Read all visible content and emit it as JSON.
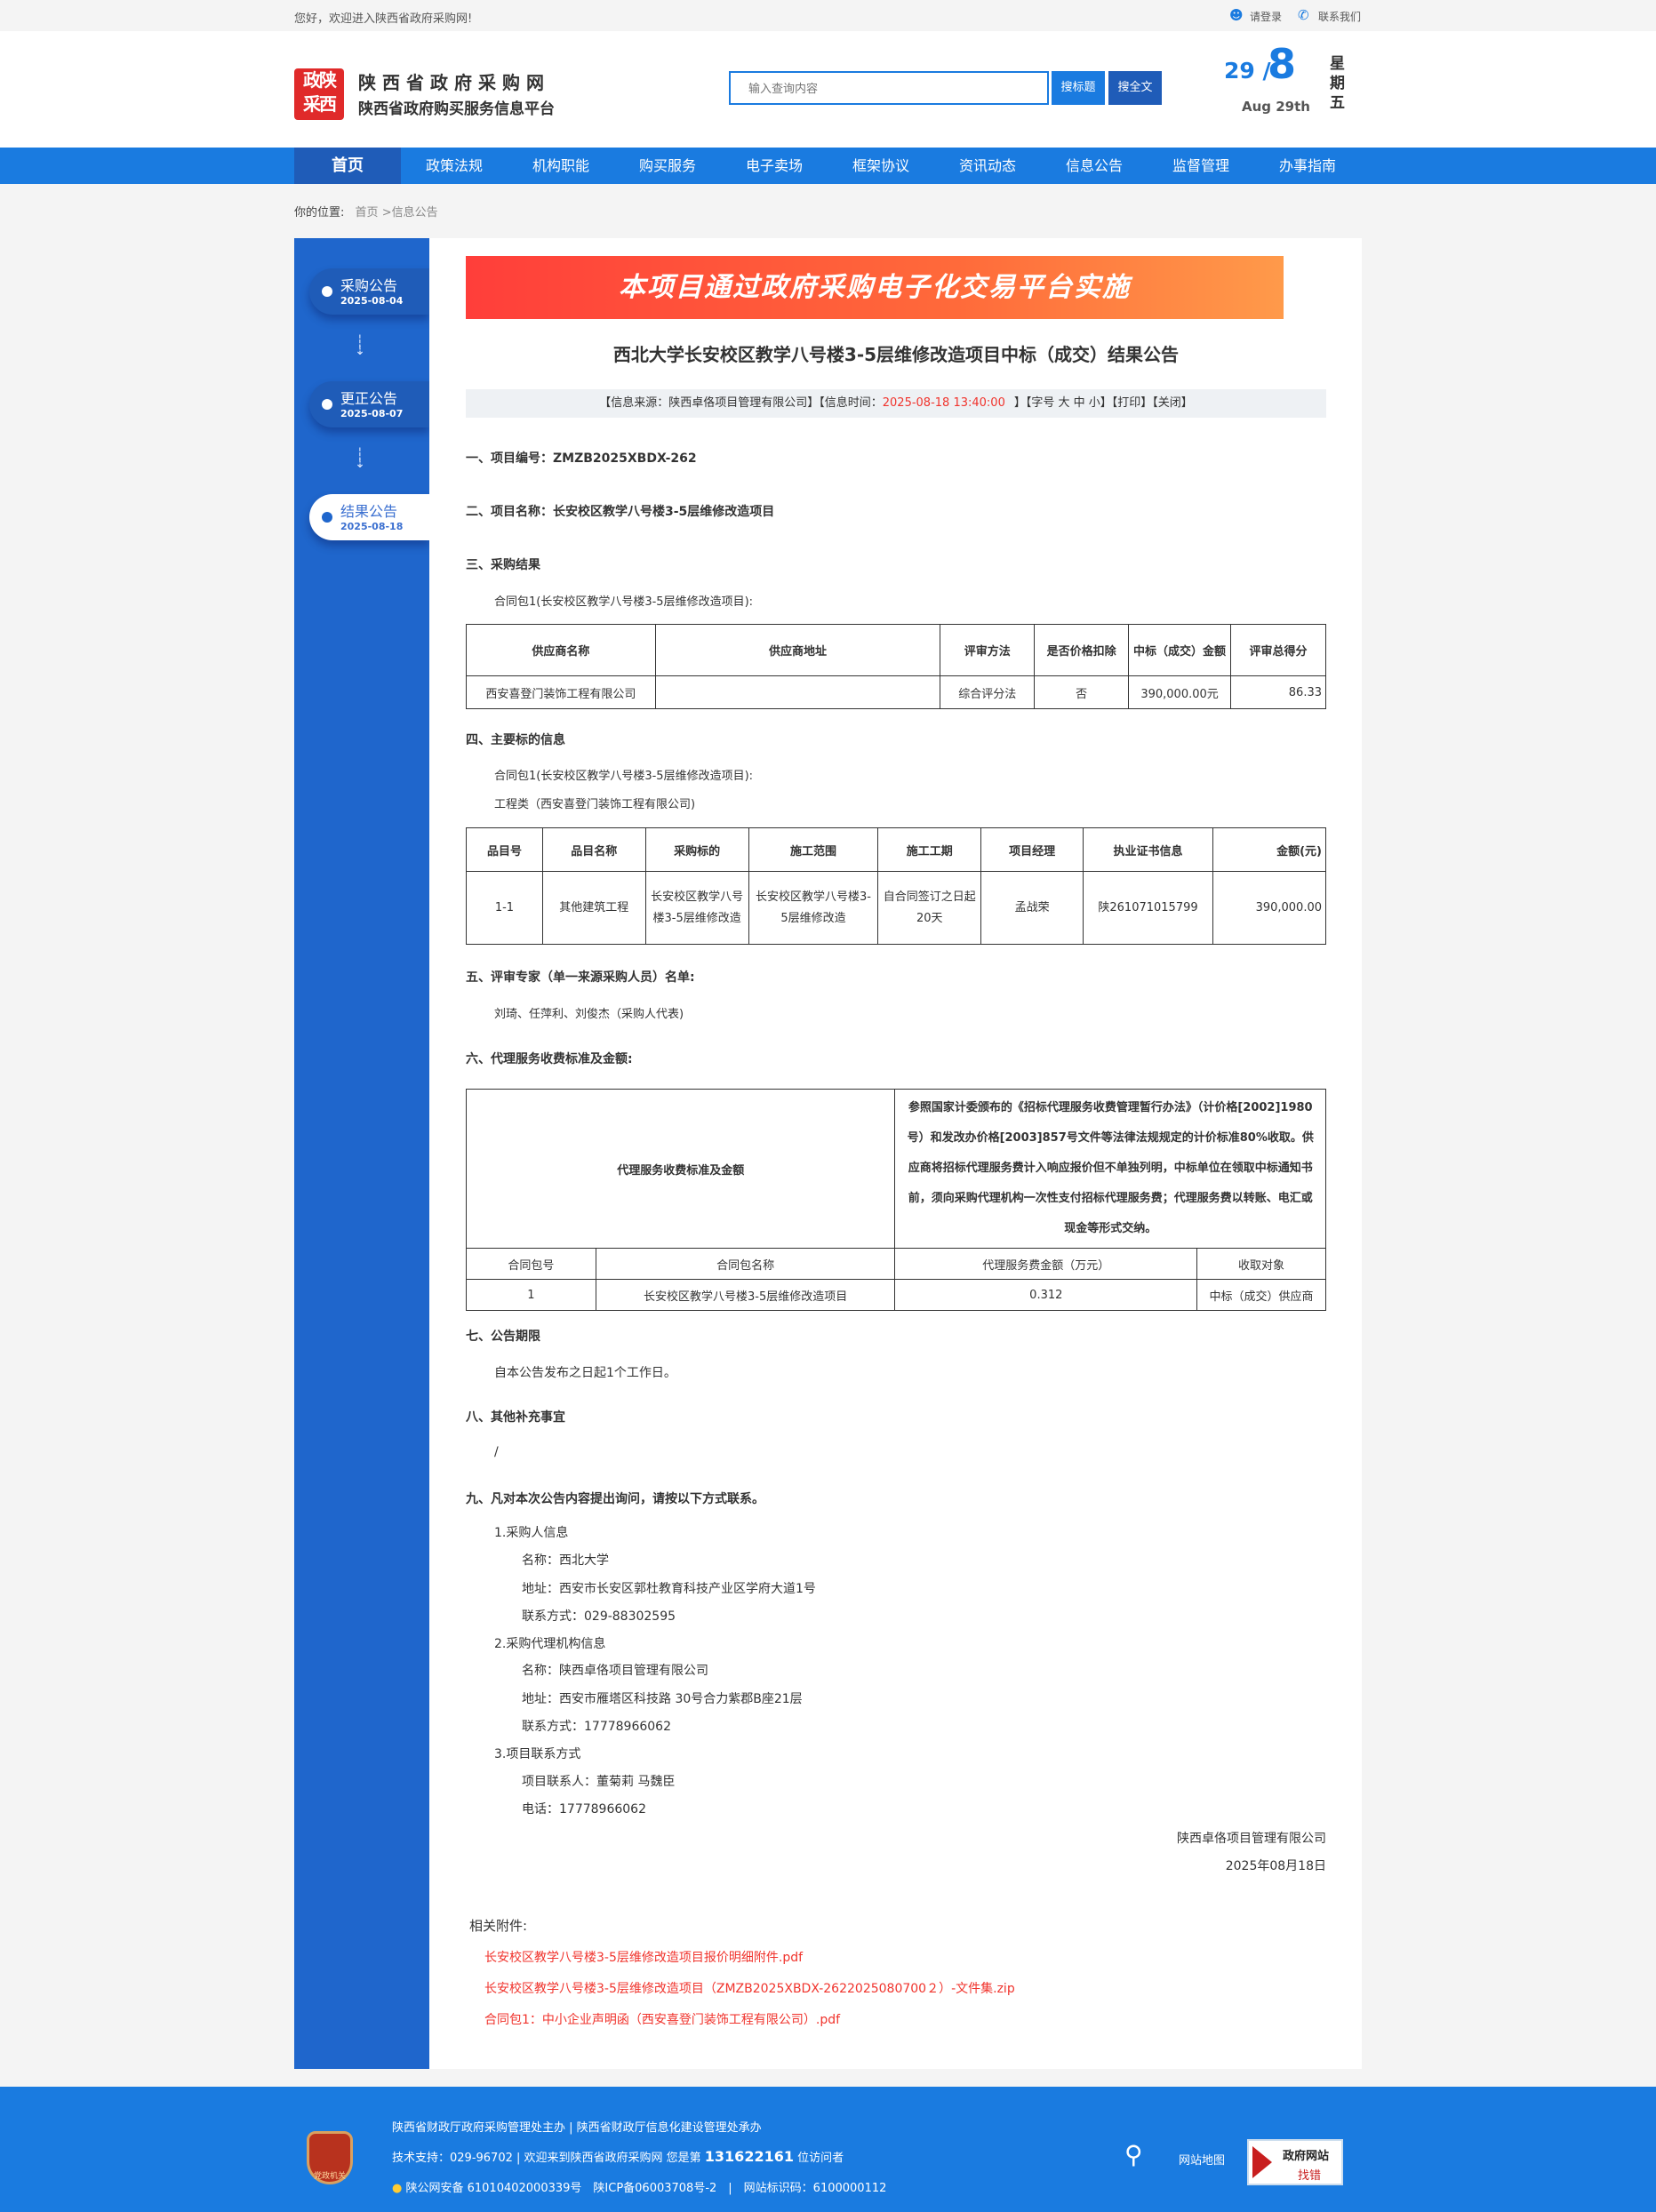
{
  "topbar": {
    "welcome": "您好，欢迎进入陕西省政府采购网!",
    "login": "请登录",
    "contact": "联系我们"
  },
  "header": {
    "logo_text": "陕政西采",
    "site_name": "陕西省政府采购网",
    "subtitle": "陕西省政府购买服务信息平台",
    "search_placeholder": "输入查询内容",
    "search_title_btn": "搜标题",
    "search_full_btn": "搜全文",
    "date_day": "29",
    "date_month": "8",
    "date_en": "Aug 29th",
    "weekday": "星期五"
  },
  "nav": [
    "首页",
    "政策法规",
    "机构职能",
    "购买服务",
    "电子卖场",
    "框架协议",
    "资讯动态",
    "信息公告",
    "监督管理",
    "办事指南"
  ],
  "breadcrumb": {
    "label": "你的位置:",
    "home": "首页",
    "current": ">信息公告"
  },
  "sidebar": [
    {
      "title": "采购公告",
      "date": "2025-08-04"
    },
    {
      "title": "更正公告",
      "date": "2025-08-07"
    },
    {
      "title": "结果公告",
      "date": "2025-08-18",
      "active": true
    }
  ],
  "banner": "本项目通过政府采购电子化交易平台实施",
  "title": "西北大学长安校区教学八号楼3-5层维修改造项目中标（成交）结果公告",
  "info": {
    "source": "【信息来源：陕西卓佫项目管理有限公司】【信息时间：",
    "time": "2025-08-18 13:40:00",
    "tail": "】【字号 大 中 小】【打印】【关闭】"
  },
  "s1": "一、项目编号：ZMZB2025XBDX-262",
  "s2": "二、项目名称：长安校区教学八号楼3-5层维修改造项目",
  "s3": "三、采购结果",
  "s3p": "合同包1(长安校区教学八号楼3-5层维修改造项目):",
  "t1": {
    "headers": [
      "供应商名称",
      "供应商地址",
      "评审方法",
      "是否价格扣除",
      "中标（成交）金额",
      "评审总得分"
    ],
    "row": [
      "西安喜登门装饰工程有限公司",
      "",
      "综合评分法",
      "否",
      "390,000.00元",
      "86.33"
    ]
  },
  "s4": "四、主要标的信息",
  "s4p1": "合同包1(长安校区教学八号楼3-5层维修改造项目):",
  "s4p2": "工程类（西安喜登门装饰工程有限公司)",
  "t2": {
    "headers": [
      "品目号",
      "品目名称",
      "采购标的",
      "施工范围",
      "施工工期",
      "项目经理",
      "执业证书信息",
      "金额(元)"
    ],
    "row": [
      "1-1",
      "其他建筑工程",
      "长安校区教学八号楼3-5层维修改造",
      "长安校区教学八号楼3-5层维修改造",
      "自合同签订之日起20天",
      "孟战荣",
      "陕261071015799",
      "390,000.00"
    ]
  },
  "s5": "五、评审专家（单一来源采购人员）名单:",
  "s5p": "刘琦、任萍利、刘俊杰（采购人代表)",
  "s6": "六、代理服务收费标准及金额:",
  "t3": {
    "label": "代理服务收费标准及金额",
    "desc": "参照国家计委颁布的《招标代理服务收费管理暂行办法》（计价格[2002]1980号）和发改办价格[2003]857号文件等法律法规规定的计价标准80%收取。供应商将招标代理服务费计入响应报价但不单独列明，中标单位在领取中标通知书前，须向采购代理机构一次性支付招标代理服务费；代理服务费以转账、电汇或现金等形式交纳。",
    "headers": [
      "合同包号",
      "合同包名称",
      "代理服务费金额（万元）",
      "收取对象"
    ],
    "row": [
      "1",
      "长安校区教学八号楼3-5层维修改造项目",
      "0.312",
      "中标（成交）供应商"
    ]
  },
  "s7": "七、公告期限",
  "s7p": "自本公告发布之日起1个工作日。",
  "s8": "八、其他补充事宜",
  "s8p": "/",
  "s9": "九、凡对本次公告内容提出询问，请按以下方式联系。",
  "contacts": [
    "1.采购人信息",
    "名称：西北大学",
    "地址：西安市长安区郭杜教育科技产业区学府大道1号",
    "联系方式：029-88302595",
    "2.采购代理机构信息",
    "名称：陕西卓佫项目管理有限公司",
    "地址：西安市雁塔区科技路 30号合力紫郡B座21层",
    "联系方式：17778966062",
    "3.项目联系方式",
    "项目联系人：董菊莉 马魏臣",
    "电话：17778966062"
  ],
  "sign": {
    "org": "陕西卓佫项目管理有限公司",
    "date": "2025年08月18日"
  },
  "attach_label": "相关附件:",
  "attachments": [
    "长安校区教学八号楼3-5层维修改造项目报价明细附件.pdf",
    "长安校区教学八号楼3-5层维修改造项目（ZMZB2025XBDX-2622025080700２）-文件集.zip",
    "合同包1：中小企业声明函（西安喜登门装饰工程有限公司）.pdf"
  ],
  "footer": {
    "line1": "陕西省财政厅政府采购管理处主办 | 陕西省财政厅信息化建设管理处承办",
    "line2a": "技术支持：029-96702 | 欢迎来到陕西省政府采购网 您是第",
    "visitors": "131622161",
    "line2b": "位访问者",
    "line3": "陕公网安备 61010402000339号　陕ICP备06003708号-2　|　网站标识码：6100000112",
    "party_badge": "党政机关",
    "sitemap": "网站地图",
    "jiucuo_top": "政府网站",
    "jiucuo_bottom": "找错"
  },
  "colors": {
    "primary": "#1a7be0",
    "nav_active": "#1f5cb8",
    "sidebar": "#1f66cc",
    "accent_red": "#f0332c"
  }
}
